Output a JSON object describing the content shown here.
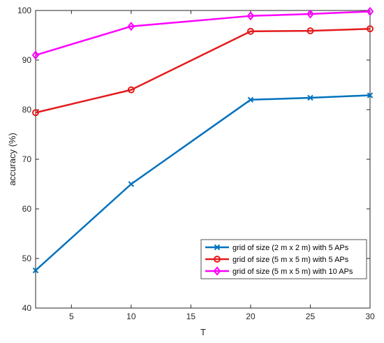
{
  "chart_data": {
    "type": "line",
    "title": "",
    "xlabel": "T",
    "ylabel": "accuracy (%)",
    "x": [
      2,
      10,
      20,
      25,
      30
    ],
    "xlim": [
      2,
      30
    ],
    "ylim": [
      40,
      100
    ],
    "xticks": [
      5,
      10,
      15,
      20,
      25,
      30
    ],
    "yticks": [
      40,
      50,
      60,
      70,
      80,
      90,
      100
    ],
    "grid": false,
    "legend_position": "lower-right",
    "series": [
      {
        "name": "grid of size (2 m x 2 m) with 5 APs",
        "values": [
          47.6,
          65.0,
          82.0,
          82.4,
          82.9
        ],
        "color": "#0072BD",
        "marker": "x"
      },
      {
        "name": "grid of size (5 m x 5 m) with 5 APs",
        "values": [
          79.4,
          84.0,
          95.8,
          95.9,
          96.3
        ],
        "color": "#E41A1C",
        "marker": "circle"
      },
      {
        "name": "grid of size (5 m x 5 m) with 10 APs",
        "values": [
          91.0,
          96.8,
          98.9,
          99.3,
          99.8
        ],
        "color": "#FF00FF",
        "marker": "diamond"
      }
    ]
  }
}
